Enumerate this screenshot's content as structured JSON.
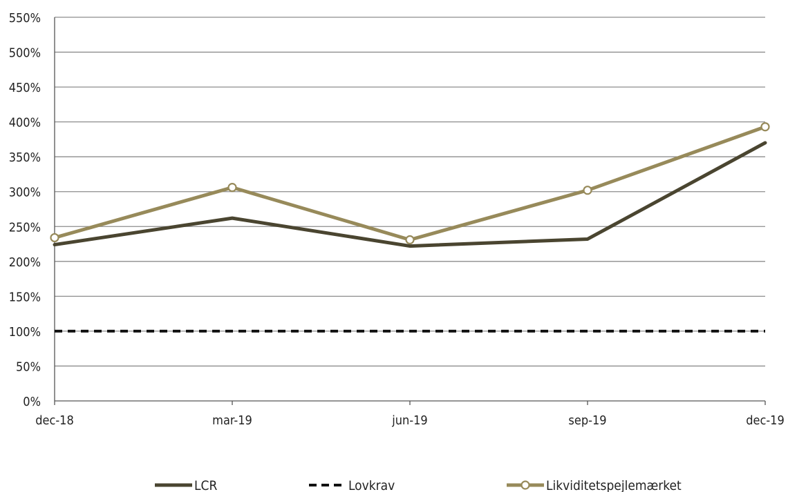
{
  "chart_data": {
    "type": "line",
    "title": "",
    "xlabel": "",
    "ylabel": "",
    "categories": [
      "dec-18",
      "mar-19",
      "jun-19",
      "sep-19",
      "dec-19"
    ],
    "ylim": [
      0,
      550
    ],
    "yticks": [
      0,
      50,
      100,
      150,
      200,
      250,
      300,
      350,
      400,
      450,
      500,
      550
    ],
    "ytick_labels": [
      "0%",
      "50%",
      "100%",
      "150%",
      "200%",
      "250%",
      "300%",
      "350%",
      "400%",
      "450%",
      "500%",
      "550%"
    ],
    "grid": true,
    "legend_position": "bottom",
    "series": [
      {
        "name": "LCR",
        "values": [
          224,
          262,
          222,
          232,
          370
        ],
        "color": "#4a4530",
        "style": "solid",
        "marker": "none"
      },
      {
        "name": "Lovkrav",
        "values": [
          100,
          100,
          100,
          100,
          100
        ],
        "color": "#111111",
        "style": "dashed",
        "marker": "none"
      },
      {
        "name": "Likviditetspejlemærket",
        "values": [
          234,
          306,
          231,
          302,
          393
        ],
        "color": "#978a5a",
        "style": "solid",
        "marker": "circle"
      }
    ]
  }
}
